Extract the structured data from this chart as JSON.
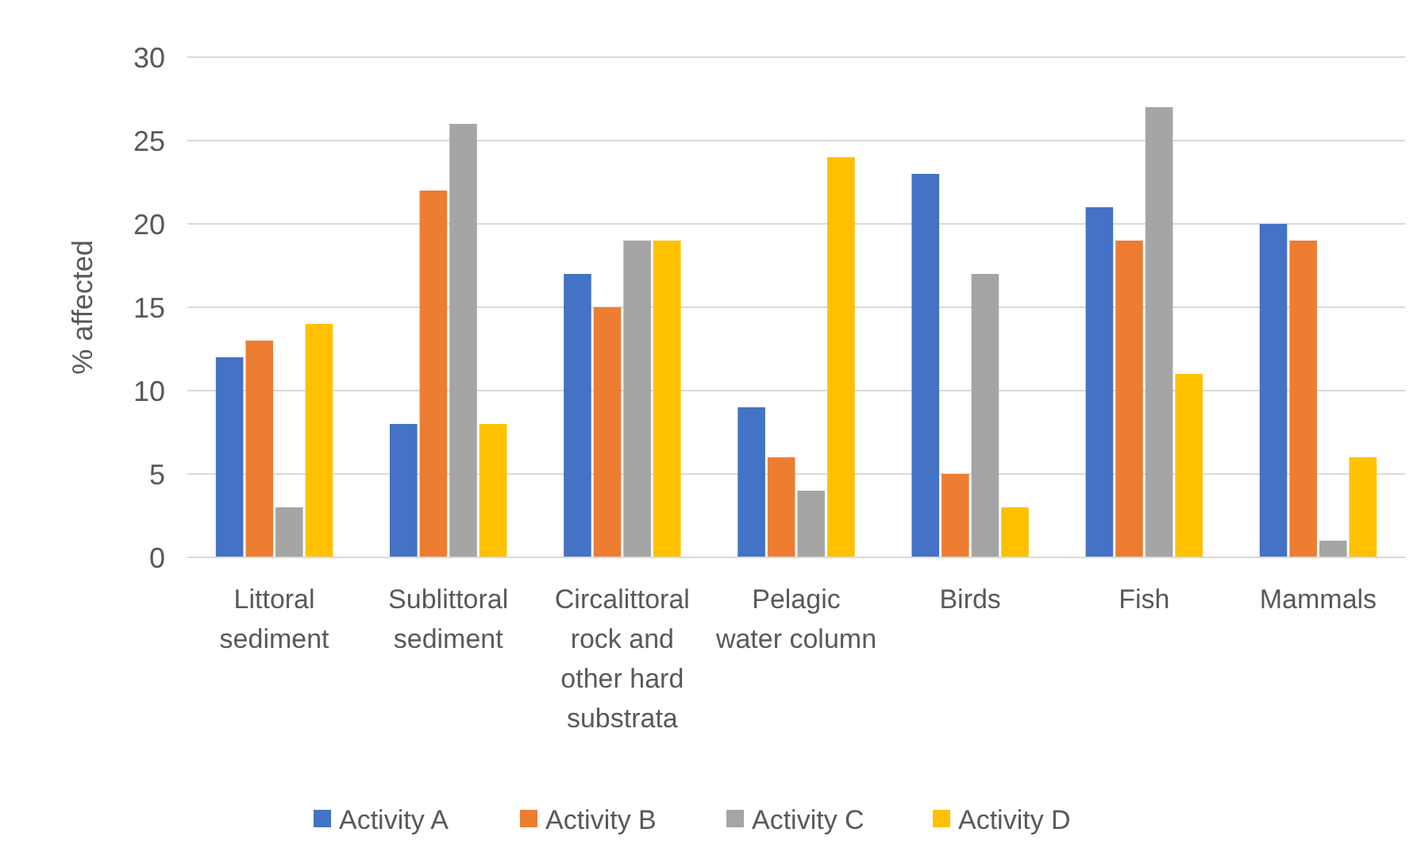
{
  "chart_data": {
    "type": "bar",
    "ylabel": "% affected",
    "categories": [
      "Littoral sediment",
      "Sublittoral sediment",
      "Circalittoral rock and other hard substrata",
      "Pelagic water column",
      "Birds",
      "Fish",
      "Mammals"
    ],
    "series": [
      {
        "name": "Activity A",
        "color": "#4472c4",
        "values": [
          12,
          8,
          17,
          9,
          23,
          21,
          20
        ]
      },
      {
        "name": "Activity B",
        "color": "#ed7d31",
        "values": [
          13,
          22,
          15,
          6,
          5,
          19,
          19
        ]
      },
      {
        "name": "Activity C",
        "color": "#a5a5a5",
        "values": [
          3,
          26,
          19,
          4,
          17,
          27,
          1
        ]
      },
      {
        "name": "Activity D",
        "color": "#ffc000",
        "values": [
          14,
          8,
          19,
          24,
          3,
          11,
          6
        ]
      }
    ],
    "ylim": [
      0,
      30
    ],
    "yticks": [
      0,
      5,
      10,
      15,
      20,
      25,
      30
    ],
    "grid": "y",
    "legend": "bottom"
  }
}
